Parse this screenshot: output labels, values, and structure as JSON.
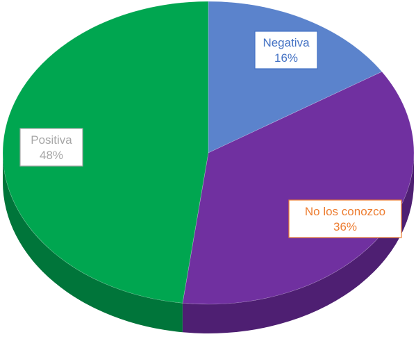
{
  "chart_data": {
    "type": "pie",
    "style": "3d",
    "categories": [
      "Negativa",
      "No los conozco",
      "Positiva"
    ],
    "values": [
      16,
      36,
      48
    ],
    "value_suffix": "%",
    "colors": {
      "Negativa": "#5b83cc",
      "No los conozco": "#7030a0",
      "Positiva": "#00a650"
    },
    "side_colors": {
      "Negativa": "#3c5f9e",
      "No los conozco": "#4e1f72",
      "Positiva": "#00753a"
    },
    "label_colors": {
      "Negativa": "#4472c4",
      "No los conozco": "#ed7d31",
      "Positiva": "#a6a6a6"
    },
    "slices": [
      {
        "label": "Negativa",
        "pct_label": "16%"
      },
      {
        "label": "No los conozco",
        "pct_label": "36%"
      },
      {
        "label": "Positiva",
        "pct_label": "48%"
      }
    ]
  }
}
